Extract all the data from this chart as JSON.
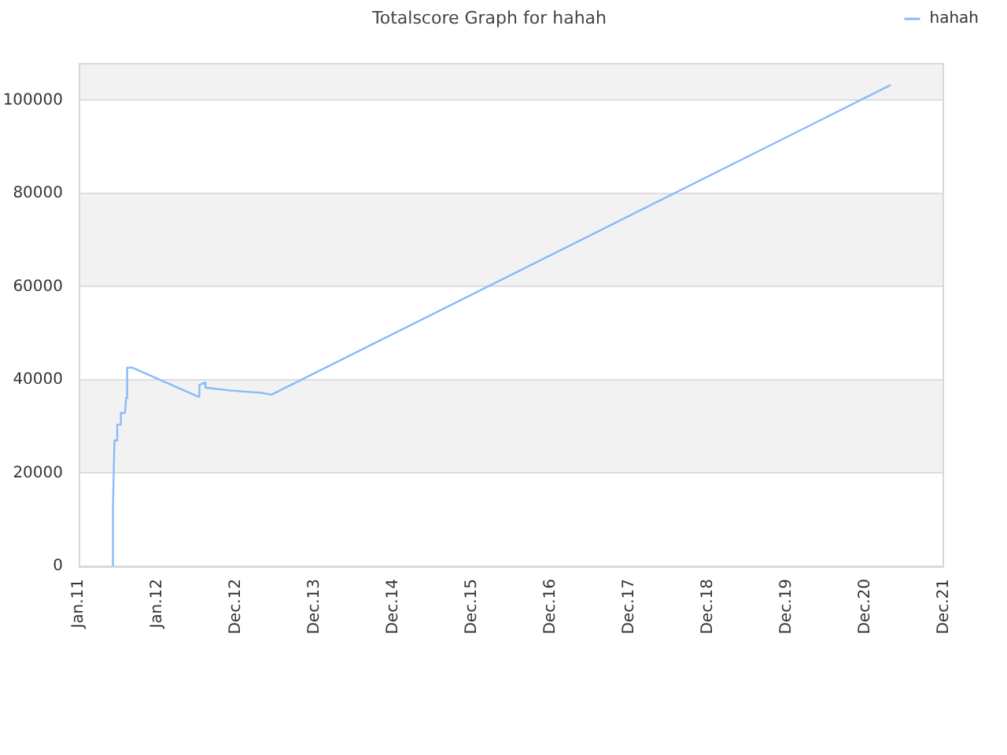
{
  "chart_data": {
    "type": "line",
    "title": "Totalscore Graph for hahah",
    "x": [
      "2011-06-08",
      "2011-06-09",
      "2011-06-16",
      "2011-06-28",
      "2011-06-29",
      "2011-07-15",
      "2011-07-16",
      "2011-08-04",
      "2011-08-09",
      "2011-08-14",
      "2011-09-08",
      "2012-07-09",
      "2012-07-14",
      "2012-08-07",
      "2012-08-12",
      "2012-09-25",
      "2012-12-08",
      "2013-03-04",
      "2013-04-30",
      "2013-06-13",
      "2021-04-23"
    ],
    "series": [
      {
        "name": "hahah",
        "color": "#88bbf8",
        "values": [
          0,
          12400,
          27000,
          27000,
          30400,
          30400,
          32900,
          32900,
          36100,
          42600,
          42600,
          36400,
          38900,
          39400,
          38300,
          38100,
          37700,
          37400,
          37200,
          36800,
          103200
        ]
      }
    ],
    "xlim": [
      "2011-01-01",
      "2021-12-29"
    ],
    "xticks": [
      {
        "value": "2011-01-01",
        "label": "Jan.11"
      },
      {
        "value": "2012-01-01",
        "label": "Jan.12"
      },
      {
        "value": "2012-12-31",
        "label": "Dec.12"
      },
      {
        "value": "2013-12-31",
        "label": "Dec.13"
      },
      {
        "value": "2014-12-31",
        "label": "Dec.14"
      },
      {
        "value": "2015-12-31",
        "label": "Dec.15"
      },
      {
        "value": "2016-12-30",
        "label": "Dec.16"
      },
      {
        "value": "2017-12-30",
        "label": "Dec.17"
      },
      {
        "value": "2018-12-30",
        "label": "Dec.18"
      },
      {
        "value": "2019-12-30",
        "label": "Dec.19"
      },
      {
        "value": "2020-12-29",
        "label": "Dec.20"
      },
      {
        "value": "2021-12-29",
        "label": "Dec.21"
      }
    ],
    "ylim": [
      0,
      108000
    ],
    "yticks": [
      0,
      20000,
      40000,
      60000,
      80000,
      100000
    ],
    "grid": "y",
    "legend": "top right"
  }
}
